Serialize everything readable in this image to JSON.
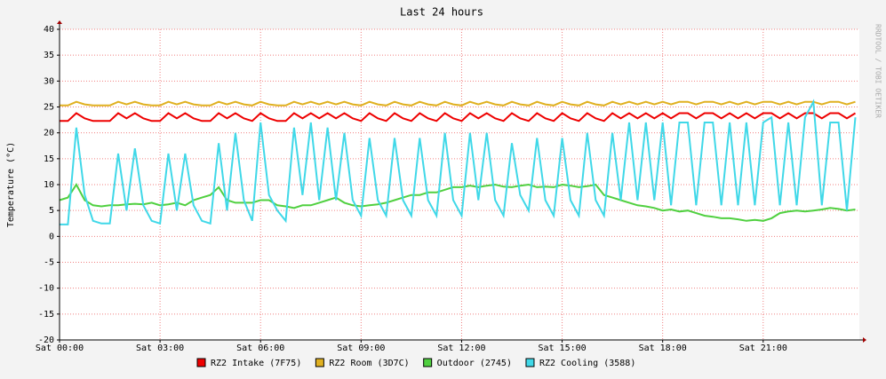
{
  "chart_data": {
    "type": "line",
    "title": "Last 24 hours",
    "ylabel": "Temperature (°C)",
    "watermark": "RRDTOOL / TOBI OETIKER",
    "x": [
      0,
      0.25,
      0.5,
      0.75,
      1,
      1.25,
      1.5,
      1.75,
      2,
      2.25,
      2.5,
      2.75,
      3,
      3.25,
      3.5,
      3.75,
      4,
      4.25,
      4.5,
      4.75,
      5,
      5.25,
      5.5,
      5.75,
      6,
      6.25,
      6.5,
      6.75,
      7,
      7.25,
      7.5,
      7.75,
      8,
      8.25,
      8.5,
      8.75,
      9,
      9.25,
      9.5,
      9.75,
      10,
      10.25,
      10.5,
      10.75,
      11,
      11.25,
      11.5,
      11.75,
      12,
      12.25,
      12.5,
      12.75,
      13,
      13.25,
      13.5,
      13.75,
      14,
      14.25,
      14.5,
      14.75,
      15,
      15.25,
      15.5,
      15.75,
      16,
      16.25,
      16.5,
      16.75,
      17,
      17.25,
      17.5,
      17.75,
      18,
      18.25,
      18.5,
      18.75,
      19,
      19.25,
      19.5,
      19.75,
      20,
      20.25,
      20.5,
      20.75,
      21,
      21.25,
      21.5,
      21.75,
      22,
      22.25,
      22.5,
      22.75,
      23,
      23.25,
      23.5,
      23.75
    ],
    "xlim": [
      0,
      23.87
    ],
    "xticks": [
      {
        "value": 0,
        "label": "Sat 00:00"
      },
      {
        "value": 3,
        "label": "Sat 03:00"
      },
      {
        "value": 6,
        "label": "Sat 06:00"
      },
      {
        "value": 9,
        "label": "Sat 09:00"
      },
      {
        "value": 12,
        "label": "Sat 12:00"
      },
      {
        "value": 15,
        "label": "Sat 15:00"
      },
      {
        "value": 18,
        "label": "Sat 18:00"
      },
      {
        "value": 21,
        "label": "Sat 21:00"
      }
    ],
    "ylim": [
      -20,
      40
    ],
    "yticks": [
      -20,
      -15,
      -10,
      -5,
      0,
      5,
      10,
      15,
      20,
      25,
      30,
      35,
      40
    ],
    "grid": true,
    "series": [
      {
        "name": "RZ2 Intake (7F75)",
        "color": "#ee0000",
        "values": [
          22.3,
          22.3,
          23.8,
          22.8,
          22.3,
          22.3,
          22.3,
          23.8,
          22.8,
          23.8,
          22.8,
          22.3,
          22.3,
          23.8,
          22.8,
          23.8,
          22.8,
          22.3,
          22.3,
          23.8,
          22.8,
          23.8,
          22.8,
          22.3,
          23.8,
          22.8,
          22.3,
          22.3,
          23.8,
          22.8,
          23.8,
          22.8,
          23.8,
          22.8,
          23.8,
          22.8,
          22.3,
          23.8,
          22.8,
          22.3,
          23.8,
          22.8,
          22.3,
          23.8,
          22.8,
          22.3,
          23.8,
          22.8,
          22.3,
          23.8,
          22.8,
          23.8,
          22.8,
          22.3,
          23.8,
          22.8,
          22.3,
          23.8,
          22.8,
          22.3,
          23.8,
          22.8,
          22.3,
          23.8,
          22.8,
          22.3,
          23.8,
          22.8,
          23.8,
          22.8,
          23.8,
          22.8,
          23.8,
          22.8,
          23.8,
          23.8,
          22.8,
          23.8,
          23.8,
          22.8,
          23.8,
          22.8,
          23.8,
          22.8,
          23.8,
          23.8,
          22.8,
          23.8,
          22.8,
          23.8,
          23.8,
          22.8,
          23.8,
          23.8,
          22.8,
          23.8
        ]
      },
      {
        "name": "RZ2 Room (3D7C)",
        "color": "#e0b020",
        "values": [
          25.3,
          25.3,
          26.0,
          25.5,
          25.3,
          25.3,
          25.3,
          26.0,
          25.5,
          26.0,
          25.5,
          25.3,
          25.3,
          26.0,
          25.5,
          26.0,
          25.5,
          25.3,
          25.3,
          26.0,
          25.5,
          26.0,
          25.5,
          25.3,
          26.0,
          25.5,
          25.3,
          25.3,
          26.0,
          25.5,
          26.0,
          25.5,
          26.0,
          25.5,
          26.0,
          25.5,
          25.3,
          26.0,
          25.5,
          25.3,
          26.0,
          25.5,
          25.3,
          26.0,
          25.5,
          25.3,
          26.0,
          25.5,
          25.3,
          26.0,
          25.5,
          26.0,
          25.5,
          25.3,
          26.0,
          25.5,
          25.3,
          26.0,
          25.5,
          25.3,
          26.0,
          25.5,
          25.3,
          26.0,
          25.5,
          25.3,
          26.0,
          25.5,
          26.0,
          25.5,
          26.0,
          25.5,
          26.0,
          25.5,
          26.0,
          26.0,
          25.5,
          26.0,
          26.0,
          25.5,
          26.0,
          25.5,
          26.0,
          25.5,
          26.0,
          26.0,
          25.5,
          26.0,
          25.5,
          26.0,
          26.0,
          25.5,
          26.0,
          26.0,
          25.5,
          26.0
        ]
      },
      {
        "name": "Outdoor (2745)",
        "color": "#50d040",
        "values": [
          7,
          7.5,
          10,
          7,
          6,
          5.8,
          6,
          6,
          6.2,
          6.3,
          6.2,
          6.5,
          6,
          6.2,
          6.5,
          6,
          7,
          7.5,
          8,
          9.5,
          7,
          6.5,
          6.5,
          6.5,
          7,
          7,
          6,
          5.8,
          5.5,
          6,
          6,
          6.5,
          7,
          7.5,
          6.5,
          6,
          5.8,
          6,
          6.2,
          6.5,
          7,
          7.5,
          8,
          8,
          8.5,
          8.5,
          9,
          9.5,
          9.5,
          9.8,
          9.5,
          9.8,
          10,
          9.6,
          9.5,
          9.8,
          10,
          9.5,
          9.6,
          9.5,
          10,
          9.8,
          9.5,
          9.7,
          10,
          8,
          7.5,
          7,
          6.5,
          6,
          5.8,
          5.5,
          5,
          5.2,
          4.8,
          5,
          4.5,
          4,
          3.8,
          3.5,
          3.5,
          3.3,
          3,
          3.2,
          3,
          3.5,
          4.5,
          4.8,
          5,
          4.8,
          5,
          5.2,
          5.5,
          5.3,
          5,
          5.2
        ]
      },
      {
        "name": "RZ2 Cooling (3588)",
        "color": "#40d8e8",
        "values": [
          2.3,
          2.3,
          21,
          8,
          3,
          2.5,
          2.5,
          16,
          5,
          17,
          6,
          3,
          2.5,
          16,
          5,
          16,
          6,
          3,
          2.5,
          18,
          5,
          20,
          7,
          3,
          22,
          8,
          5,
          3,
          21,
          8,
          22,
          7,
          21,
          7,
          20,
          7,
          4,
          19,
          7,
          4,
          19,
          7,
          4,
          19,
          7,
          4,
          20,
          7,
          4,
          20,
          7,
          20,
          7,
          4,
          18,
          8,
          5,
          19,
          7,
          4,
          19,
          7,
          4,
          20,
          7,
          4,
          20,
          7,
          22,
          7,
          22,
          7,
          22,
          6,
          22,
          22,
          6,
          22,
          22,
          6,
          22,
          6,
          22,
          6,
          22,
          23,
          6,
          22,
          6,
          23,
          26,
          6,
          22,
          22,
          5,
          23
        ]
      }
    ]
  }
}
